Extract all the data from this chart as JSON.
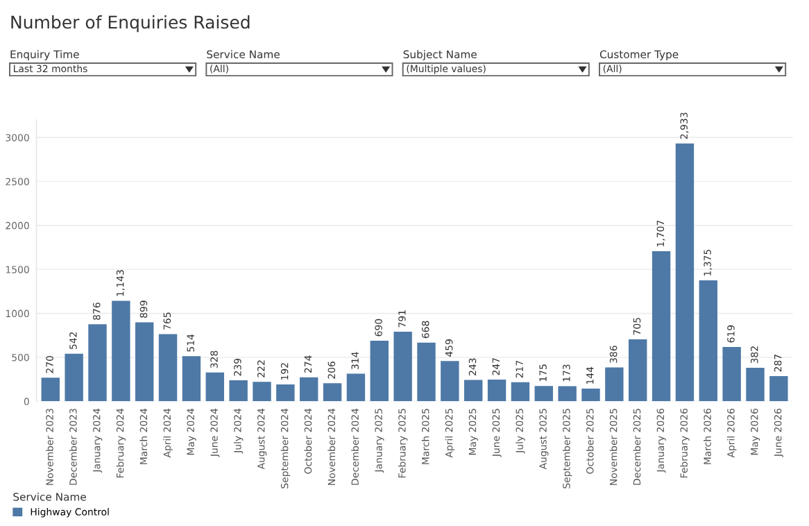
{
  "chart_data": {
    "type": "bar",
    "title": "Number of Enquiries Raised",
    "annotations": [
      "Enquiry Time",
      "Last 32 months",
      "Service Name",
      "(All)",
      "Subject Name",
      "(Multiple values)",
      "Customer Type",
      "(All)"
    ],
    "categories": [
      "November 2023",
      "December 2023",
      "January 2024",
      "February 2024",
      "March 2024",
      "April 2024",
      "May 2024",
      "June 2024",
      "July 2024",
      "August 2024",
      "September 2024",
      "October 2024",
      "November 2024",
      "December 2024",
      "January 2025",
      "February 2025",
      "March 2025",
      "April 2025",
      "May 2025",
      "June 2025",
      "July 2025",
      "August 2025",
      "September 2025",
      "October 2025",
      "November 2025",
      "December 2025",
      "January 2026",
      "February 2026",
      "March 2026",
      "April 2026",
      "May 2026",
      "June 2026"
    ],
    "series": [
      {
        "name": "Highway Control",
        "color": "#4e79a7",
        "values": [
          270,
          542,
          876,
          1143,
          899,
          765,
          514,
          328,
          239,
          222,
          192,
          274,
          206,
          314,
          690,
          791,
          668,
          459,
          243,
          247,
          217,
          175,
          173,
          144,
          386,
          705,
          1707,
          2933,
          1375,
          619,
          382,
          287
        ],
        "value_labels": [
          "270",
          "542",
          "876",
          "1,143",
          "899",
          "765",
          "514",
          "328",
          "239",
          "222",
          "192",
          "274",
          "206",
          "314",
          "690",
          "791",
          "668",
          "459",
          "243",
          "247",
          "217",
          "175",
          "173",
          "144",
          "386",
          "705",
          "1,707",
          "2,933",
          "1,375",
          "619",
          "382",
          "287"
        ]
      }
    ],
    "legend_title": "Service Name",
    "legend": "bottom left",
    "ylim": [
      0,
      3200
    ],
    "yticks": [
      0,
      500,
      1000,
      1500,
      2000,
      2500,
      3000
    ],
    "grid": "y"
  }
}
